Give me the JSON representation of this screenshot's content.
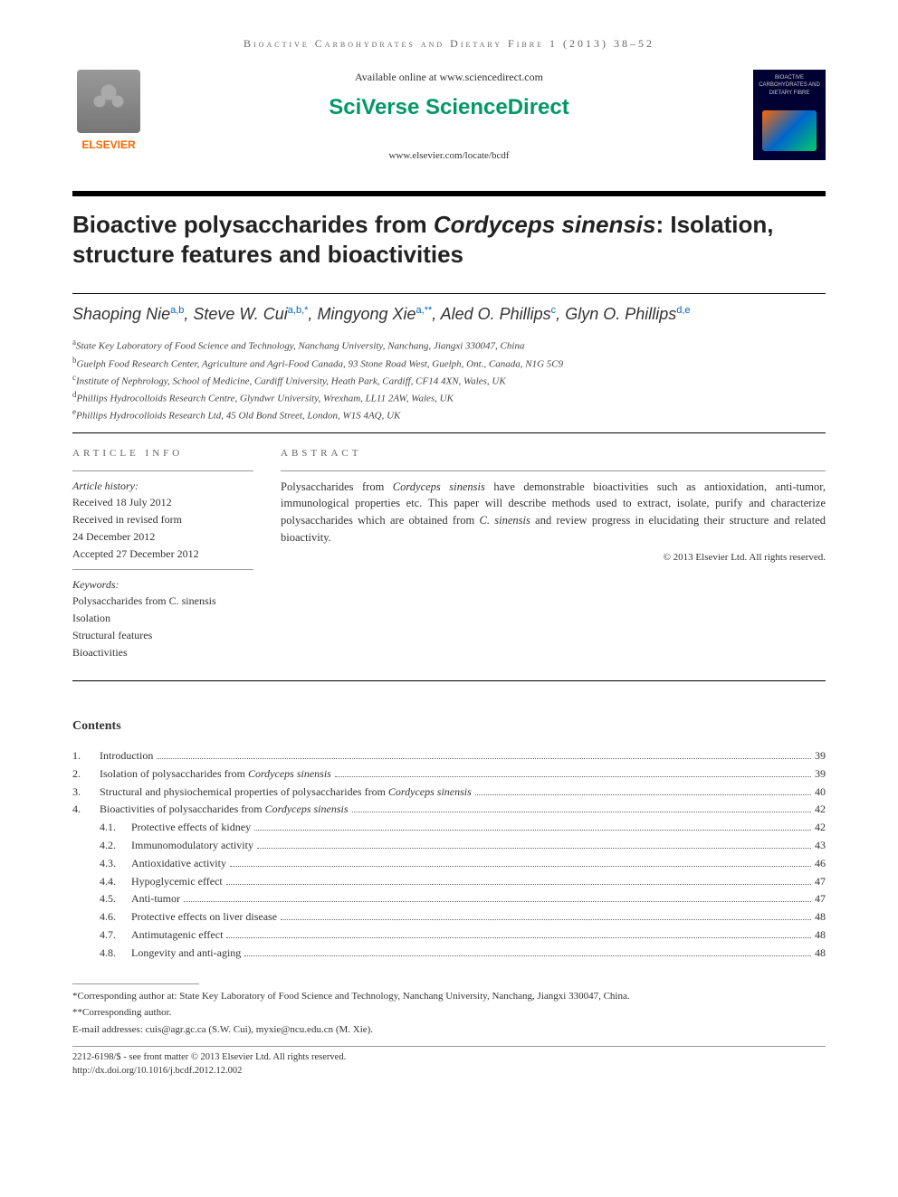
{
  "journal_header": "Bioactive Carbohydrates and Dietary Fibre 1 (2013) 38–52",
  "header": {
    "elsevier": "ELSEVIER",
    "available_online": "Available online at www.sciencedirect.com",
    "sciverse": "SciVerse ScienceDirect",
    "elsevier_url": "www.elsevier.com/locate/bcdf",
    "cover_top": "BIOACTIVE CARBOHYDRATES AND DIETARY FIBRE"
  },
  "title_pre": "Bioactive polysaccharides from ",
  "title_em": "Cordyceps sinensis",
  "title_post": ": Isolation, structure features and bioactivities",
  "authors": [
    {
      "name": "Shaoping Nie",
      "affs": "a,b"
    },
    {
      "name": "Steve W. Cui",
      "affs": "a,b,*"
    },
    {
      "name": "Mingyong Xie",
      "affs": "a,**"
    },
    {
      "name": "Aled O. Phillips",
      "affs": "c"
    },
    {
      "name": "Glyn O. Phillips",
      "affs": "d,e"
    }
  ],
  "affiliations": [
    {
      "sup": "a",
      "text": "State Key Laboratory of Food Science and Technology, Nanchang University, Nanchang, Jiangxi 330047, China"
    },
    {
      "sup": "b",
      "text": "Guelph Food Research Center, Agriculture and Agri-Food Canada, 93 Stone Road West, Guelph, Ont., Canada, N1G 5C9"
    },
    {
      "sup": "c",
      "text": "Institute of Nephrology, School of Medicine, Cardiff University, Heath Park, Cardiff, CF14 4XN, Wales, UK"
    },
    {
      "sup": "d",
      "text": "Phillips Hydrocolloids Research Centre, Glyndwr University, Wrexham, LL11 2AW, Wales, UK"
    },
    {
      "sup": "e",
      "text": "Phillips Hydrocolloids Research Ltd, 45 Old Bond Street, London, W1S 4AQ, UK"
    }
  ],
  "article_info_label": "article info",
  "abstract_label": "abstract",
  "history": {
    "label": "Article history:",
    "items": [
      "Received 18 July 2012",
      "Received in revised form",
      "24 December 2012",
      "Accepted 27 December 2012"
    ]
  },
  "keywords": {
    "label": "Keywords:",
    "items": [
      "Polysaccharides from C. sinensis",
      "Isolation",
      "Structural features",
      "Bioactivities"
    ]
  },
  "abstract_pre": "Polysaccharides from ",
  "abstract_em1": "Cordyceps sinensis",
  "abstract_mid": " have demonstrable bioactivities such as antioxidation, anti-tumor, immunological properties etc. This paper will describe methods used to extract, isolate, purify and characterize polysaccharides which are obtained from ",
  "abstract_em2": "C. sinensis",
  "abstract_post": " and review progress in elucidating their structure and related bioactivity.",
  "copyright": "© 2013 Elsevier Ltd. All rights reserved.",
  "contents_label": "Contents",
  "toc": [
    {
      "num": "1.",
      "title": "Introduction",
      "page": "39"
    },
    {
      "num": "2.",
      "title_pre": "Isolation of polysaccharides from ",
      "title_em": "Cordyceps sinensis",
      "page": "39"
    },
    {
      "num": "3.",
      "title_pre": "Structural and physiochemical properties of polysaccharides from ",
      "title_em": "Cordyceps sinensis",
      "page": "40"
    },
    {
      "num": "4.",
      "title_pre": "Bioactivities of polysaccharides from ",
      "title_em": "Cordyceps sinensis",
      "page": "42"
    }
  ],
  "toc_sub": [
    {
      "num": "4.1.",
      "title": "Protective effects of kidney",
      "page": "42"
    },
    {
      "num": "4.2.",
      "title": "Immunomodulatory activity",
      "page": "43"
    },
    {
      "num": "4.3.",
      "title": "Antioxidative activity",
      "page": "46"
    },
    {
      "num": "4.4.",
      "title": "Hypoglycemic effect",
      "page": "47"
    },
    {
      "num": "4.5.",
      "title": "Anti-tumor",
      "page": "47"
    },
    {
      "num": "4.6.",
      "title": "Protective effects on liver disease",
      "page": "48"
    },
    {
      "num": "4.7.",
      "title": "Antimutagenic effect",
      "page": "48"
    },
    {
      "num": "4.8.",
      "title": "Longevity and anti-aging",
      "page": "48"
    }
  ],
  "footnotes": {
    "f1": "*Corresponding author at: State Key Laboratory of Food Science and Technology, Nanchang University, Nanchang, Jiangxi 330047, China.",
    "f2": "**Corresponding author.",
    "f3_pre": "E-mail addresses: ",
    "f3_em1": "cuis@agr.gc.ca (S.W. Cui), myxie@ncu.edu.cn (M. Xie)."
  },
  "footer": {
    "line1": "2212-6198/$ - see front matter © 2013 Elsevier Ltd. All rights reserved.",
    "line2": "http://dx.doi.org/10.1016/j.bcdf.2012.12.002"
  },
  "colors": {
    "elsevier_orange": "#ff6600",
    "sciverse_green": "#009966",
    "sup_blue": "#0066cc",
    "text": "#333333",
    "rule": "#000000"
  }
}
